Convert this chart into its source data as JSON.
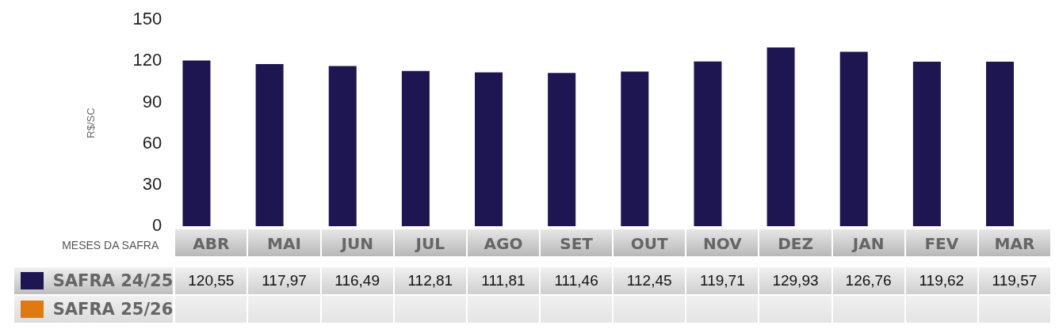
{
  "chart_data": {
    "type": "bar",
    "xlabel": "MESES DA SAFRA",
    "ylabel": "R$/SC",
    "categories": [
      "ABR",
      "MAI",
      "JUN",
      "JUL",
      "AGO",
      "SET",
      "OUT",
      "NOV",
      "DEZ",
      "JAN",
      "FEV",
      "MAR"
    ],
    "series": [
      {
        "name": "SAFRA 24/25",
        "color": "#1e1650",
        "values": [
          120.55,
          117.97,
          116.49,
          112.81,
          111.81,
          111.46,
          112.45,
          119.71,
          129.93,
          126.76,
          119.62,
          119.57
        ],
        "value_labels": [
          "120,55",
          "117,97",
          "116,49",
          "112,81",
          "111,81",
          "111,46",
          "112,45",
          "119,71",
          "129,93",
          "126,76",
          "119,62",
          "119,57"
        ]
      },
      {
        "name": "SAFRA 25/26",
        "color": "#e07a10",
        "values": [
          null,
          null,
          null,
          null,
          null,
          null,
          null,
          null,
          null,
          null,
          null,
          null
        ]
      }
    ],
    "ylim": [
      0,
      150
    ],
    "yticks": [
      0,
      30,
      60,
      90,
      120,
      150
    ],
    "grid": false
  }
}
